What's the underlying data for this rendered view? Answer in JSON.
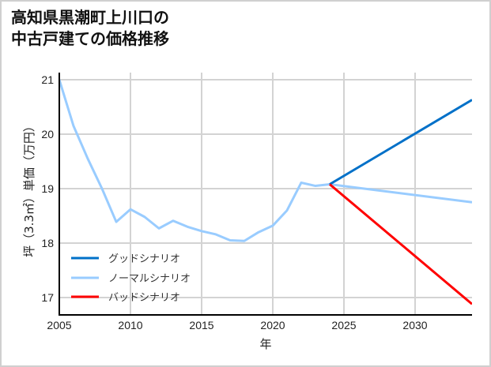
{
  "title_line1": "高知県黒潮町上川口の",
  "title_line2": "中古戸建ての価格推移",
  "chart_data": {
    "type": "line",
    "title": "高知県黒潮町上川口の中古戸建ての価格推移",
    "xlabel": "年",
    "ylabel": "坪（3.3㎡）単価（万円）",
    "xlim": [
      2005,
      2034
    ],
    "ylim": [
      16.7,
      21.1
    ],
    "xticks": [
      2005,
      2010,
      2015,
      2020,
      2025,
      2030
    ],
    "yticks": [
      17,
      18,
      19,
      20,
      21
    ],
    "grid": true,
    "legend_position": "lower left",
    "series": [
      {
        "name": "グッドシナリオ",
        "color": "#0070c8",
        "x": [
          2024,
          2034
        ],
        "values": [
          19.08,
          20.63
        ]
      },
      {
        "name": "ノーマルシナリオ",
        "color": "#99ccff",
        "x": [
          2005,
          2006,
          2007,
          2008,
          2009,
          2010,
          2011,
          2012,
          2013,
          2014,
          2015,
          2016,
          2017,
          2018,
          2019,
          2020,
          2021,
          2022,
          2023,
          2024,
          2034
        ],
        "values": [
          21.0,
          20.15,
          19.55,
          19.0,
          18.39,
          18.62,
          18.48,
          18.27,
          18.41,
          18.3,
          18.22,
          18.16,
          18.05,
          18.04,
          18.2,
          18.32,
          18.6,
          19.11,
          19.05,
          19.08,
          18.75
        ]
      },
      {
        "name": "バッドシナリオ",
        "color": "#ff0000",
        "x": [
          2024,
          2034
        ],
        "values": [
          19.08,
          16.88
        ]
      }
    ]
  },
  "xlabel": "年",
  "ylabel": "坪（3.3㎡）単価（万円）",
  "legend": [
    "グッドシナリオ",
    "ノーマルシナリオ",
    "バッドシナリオ"
  ]
}
